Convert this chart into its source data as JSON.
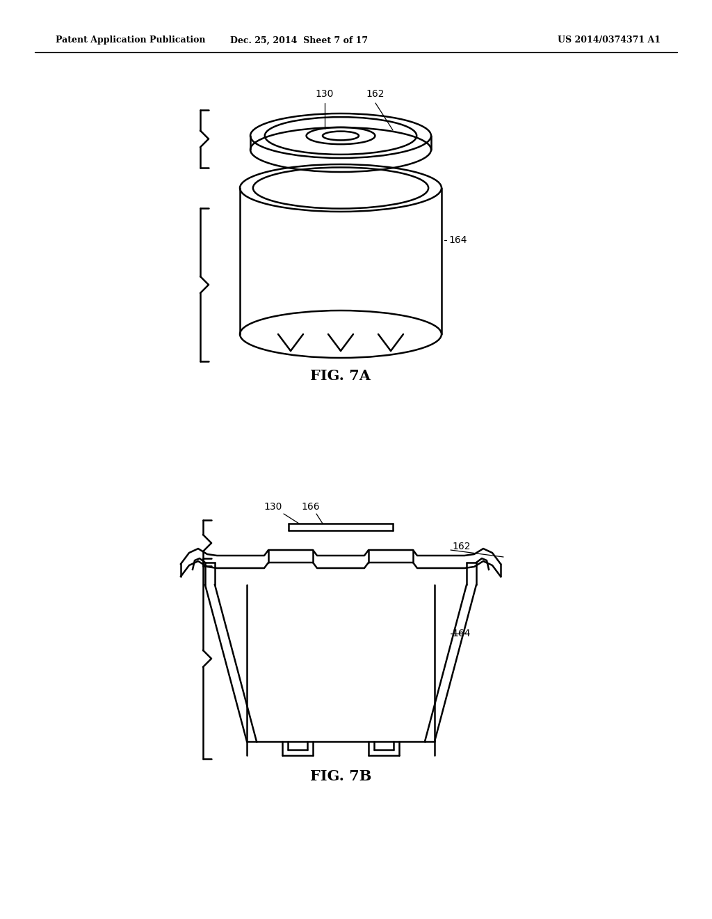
{
  "bg_color": "#ffffff",
  "line_color": "#000000",
  "header_left": "Patent Application Publication",
  "header_mid": "Dec. 25, 2014  Sheet 7 of 17",
  "header_right": "US 2014/0374371 A1",
  "fig7a_label": "FIG. 7A",
  "fig7b_label": "FIG. 7B",
  "label_130_7a": "130",
  "label_162_7a": "162",
  "label_164_7a": "164",
  "label_130_7b": "130",
  "label_166_7b": "166",
  "label_162_7b": "162",
  "label_164_7b": "164"
}
